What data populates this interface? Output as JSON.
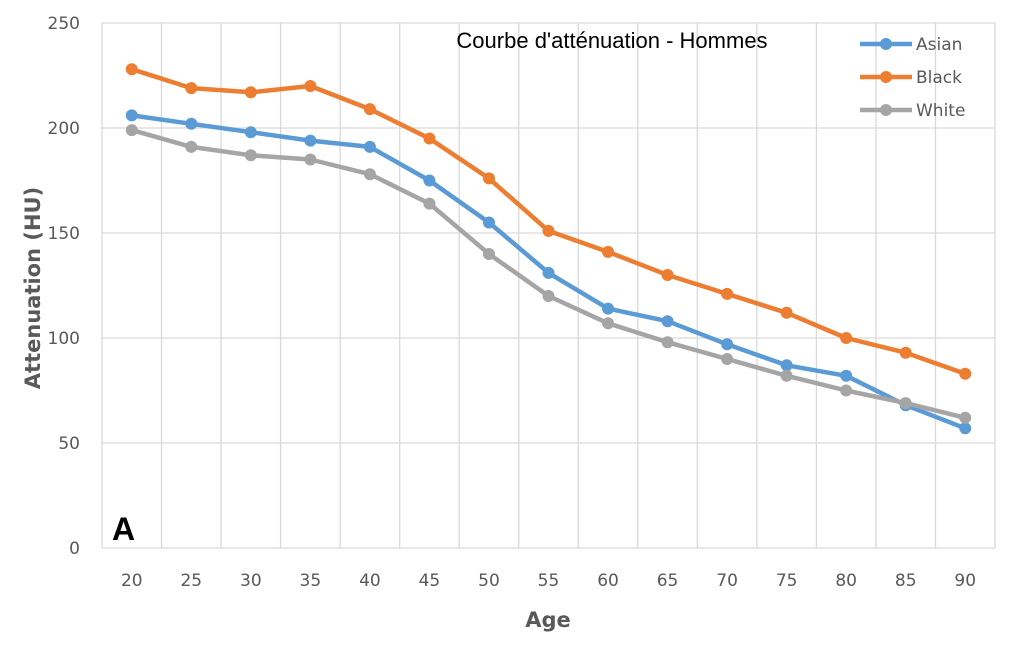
{
  "chart_data": {
    "type": "line",
    "title": "Courbe d'atténuation - Hommes",
    "panel_label": "A",
    "xlabel": "Age",
    "ylabel": "Attenuation (HU)",
    "categories": [
      "20",
      "25",
      "30",
      "35",
      "40",
      "45",
      "50",
      "55",
      "60",
      "65",
      "70",
      "75",
      "80",
      "85",
      "90"
    ],
    "ylim": [
      0,
      250
    ],
    "yticks": [
      "0",
      "50",
      "100",
      "150",
      "200",
      "250"
    ],
    "grid": true,
    "legend_position": "top-right",
    "series": [
      {
        "name": "Asian",
        "color": "#5b9bd5",
        "values": [
          206,
          202,
          198,
          194,
          191,
          175,
          155,
          131,
          114,
          108,
          97,
          87,
          82,
          68,
          57
        ]
      },
      {
        "name": "Black",
        "color": "#ed7d31",
        "values": [
          228,
          219,
          217,
          220,
          209,
          195,
          176,
          151,
          141,
          130,
          121,
          112,
          100,
          93,
          83
        ]
      },
      {
        "name": "White",
        "color": "#a5a5a5",
        "values": [
          199,
          191,
          187,
          185,
          178,
          164,
          140,
          120,
          107,
          98,
          90,
          82,
          75,
          69,
          62
        ]
      }
    ]
  }
}
